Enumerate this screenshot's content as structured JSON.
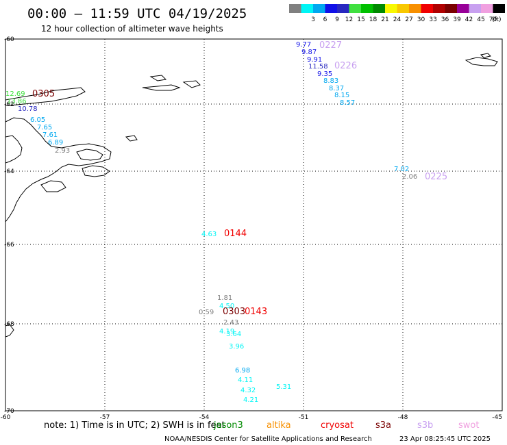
{
  "header": {
    "title": "00:00 – 11:59 UTC 04/19/2025",
    "subtitle": "12 hour collection of altimeter wave heights"
  },
  "colorbar": {
    "unit": "(ft)",
    "bins": [
      {
        "label": "",
        "color": "#808080"
      },
      {
        "label": "3",
        "color": "#00f5f5"
      },
      {
        "label": "6",
        "color": "#00a8f0"
      },
      {
        "label": "9",
        "color": "#1010e8"
      },
      {
        "label": "12",
        "color": "#2828c0"
      },
      {
        "label": "15",
        "color": "#40e040"
      },
      {
        "label": "18",
        "color": "#00c000"
      },
      {
        "label": "21",
        "color": "#008a00"
      },
      {
        "label": "24",
        "color": "#f8f800"
      },
      {
        "label": "27",
        "color": "#f8c800"
      },
      {
        "label": "30",
        "color": "#f89000"
      },
      {
        "label": "33",
        "color": "#f00000"
      },
      {
        "label": "36",
        "color": "#b00000"
      },
      {
        "label": "39",
        "color": "#7a0000"
      },
      {
        "label": "42",
        "color": "#980098"
      },
      {
        "label": "45",
        "color": "#c8a0f0"
      },
      {
        "label": "70",
        "color": "#f0a0e0"
      },
      {
        "label": "",
        "color": "#000000"
      }
    ]
  },
  "map": {
    "lon_range": [
      -60,
      -45
    ],
    "lat_range": [
      -70,
      -60
    ],
    "lon_ticks": [
      "-60",
      "-57",
      "-54",
      "-51",
      "-48",
      "-45"
    ],
    "lat_ticks": [
      "-60",
      "-62",
      "-64",
      "-66",
      "-68",
      "-70"
    ],
    "swh_labels": [
      {
        "text": "12.69",
        "color": "#40e040"
      },
      {
        "text": "13.86",
        "color": "#40e040"
      },
      {
        "text": "10.78",
        "color": "#2828c0"
      },
      {
        "text": "6.05",
        "color": "#00a8f0"
      },
      {
        "text": "7.65",
        "color": "#00a8f0"
      },
      {
        "text": "7.61",
        "color": "#00a8f0"
      },
      {
        "text": "6.89",
        "color": "#00a8f0"
      },
      {
        "text": "2.93",
        "color": "#808080"
      },
      {
        "text": "9.77",
        "color": "#1010e8"
      },
      {
        "text": "9.87",
        "color": "#1010e8"
      },
      {
        "text": "9.91",
        "color": "#1010e8"
      },
      {
        "text": "11.58",
        "color": "#2828c0"
      },
      {
        "text": "9.35",
        "color": "#1010e8"
      },
      {
        "text": "8.83",
        "color": "#00a8f0"
      },
      {
        "text": "8.37",
        "color": "#00a8f0"
      },
      {
        "text": "8.15",
        "color": "#00a8f0"
      },
      {
        "text": "8.57",
        "color": "#00a8f0"
      },
      {
        "text": "7.02",
        "color": "#00a8f0"
      },
      {
        "text": "2.06",
        "color": "#808080"
      },
      {
        "text": "4.63",
        "color": "#00f5f5"
      },
      {
        "text": "1.81",
        "color": "#808080"
      },
      {
        "text": "4.50",
        "color": "#00f5f5"
      },
      {
        "text": "0.59",
        "color": "#808080"
      },
      {
        "text": "2.43",
        "color": "#808080"
      },
      {
        "text": "4.19",
        "color": "#00f5f5"
      },
      {
        "text": "3.64",
        "color": "#00f5f5"
      },
      {
        "text": "3.96",
        "color": "#00f5f5"
      },
      {
        "text": "6.98",
        "color": "#00a8f0"
      },
      {
        "text": "4.11",
        "color": "#00f5f5"
      },
      {
        "text": "4.32",
        "color": "#00f5f5"
      },
      {
        "text": "5.31",
        "color": "#00f5f5"
      },
      {
        "text": "4.21",
        "color": "#00f5f5"
      }
    ],
    "time_labels": [
      {
        "text": "0305",
        "color": "#7a0000"
      },
      {
        "text": "0227",
        "color": "#c8a0f0"
      },
      {
        "text": "0226",
        "color": "#c8a0f0"
      },
      {
        "text": "0225",
        "color": "#c8a0f0"
      },
      {
        "text": "0144",
        "color": "#f00000"
      },
      {
        "text": "0303",
        "color": "#7a0000"
      },
      {
        "text": "0143",
        "color": "#f00000"
      }
    ]
  },
  "footer": {
    "note": "note: 1) Time is in UTC; 2) SWH is in feet",
    "satellites": [
      {
        "name": "jason3",
        "color": "#008a00"
      },
      {
        "name": "altika",
        "color": "#f89000"
      },
      {
        "name": "cryosat",
        "color": "#f00000"
      },
      {
        "name": "s3a",
        "color": "#7a0000"
      },
      {
        "name": "s3b",
        "color": "#c8a0f0"
      },
      {
        "name": "swot",
        "color": "#f0a0e0"
      }
    ],
    "credit": "NOAA/NESDIS Center for Satellite Applications and Research",
    "timestamp": "23 Apr 08:25:45 UTC 2025"
  }
}
